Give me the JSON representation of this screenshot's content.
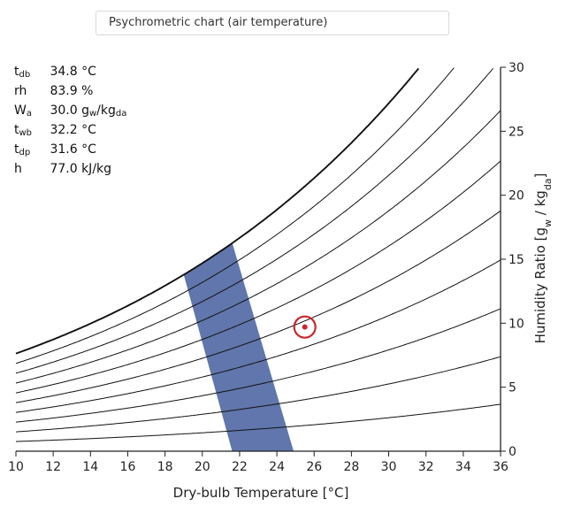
{
  "title": "Psychrometric chart (air temperature)",
  "readout": [
    {
      "sym": "t",
      "sub": "db",
      "value": "34.8",
      "unit": "°C"
    },
    {
      "sym": "rh",
      "sub": "",
      "value": "83.9",
      "unit": "%"
    },
    {
      "sym": "W",
      "sub": "a",
      "value": "30.0",
      "unit_html": "g w/kg da"
    },
    {
      "sym": "t",
      "sub": "wb",
      "value": "32.2",
      "unit": "°C"
    },
    {
      "sym": "t",
      "sub": "dp",
      "value": "31.6",
      "unit": "°C"
    },
    {
      "sym": "h",
      "sub": "",
      "value": "77.0",
      "unit": "kJ/kg"
    }
  ],
  "chart_data": {
    "type": "line",
    "xlabel": "Dry-bulb Temperature [°C]",
    "ylabel": "Humidity Ratio [gw / kgda]",
    "xlim": [
      10,
      36
    ],
    "ylim": [
      0,
      30
    ],
    "xticks": [
      10,
      12,
      14,
      16,
      18,
      20,
      22,
      24,
      26,
      28,
      30,
      32,
      34,
      36
    ],
    "yticks": [
      0,
      5,
      10,
      15,
      20,
      25,
      30
    ],
    "rh_curves_percent": [
      10,
      20,
      30,
      40,
      50,
      60,
      70,
      80,
      90,
      100
    ],
    "comfort_zone": {
      "polygon": [
        [
          19.0,
          13.8
        ],
        [
          21.6,
          16.3
        ],
        [
          24.9,
          0
        ],
        [
          21.6,
          0
        ]
      ],
      "color": "#4a63a1"
    },
    "marker": {
      "x": 25.5,
      "y": 9.7,
      "color": "#c8252c"
    },
    "grid": false
  }
}
